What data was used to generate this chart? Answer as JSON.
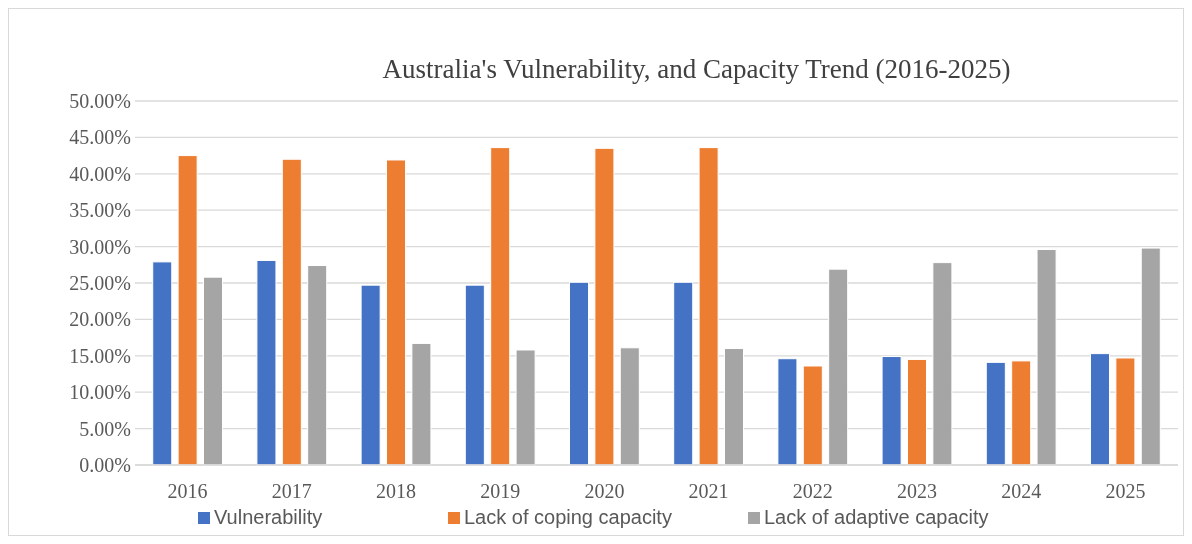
{
  "chart_data": {
    "type": "bar",
    "title": "Australia's Vulnerability, and Capacity Trend (2016-2025)",
    "categories": [
      "2016",
      "2017",
      "2018",
      "2019",
      "2020",
      "2021",
      "2022",
      "2023",
      "2024",
      "2025"
    ],
    "series": [
      {
        "name": "Vulnerability",
        "color": "#4472c4",
        "values": [
          27.9,
          28.1,
          24.7,
          24.7,
          25.1,
          25.1,
          14.6,
          14.9,
          14.1,
          15.3
        ]
      },
      {
        "name": "Lack of coping capacity",
        "color": "#ed7d31",
        "values": [
          42.5,
          42.0,
          41.9,
          43.6,
          43.5,
          43.6,
          13.6,
          14.5,
          14.3,
          14.7
        ]
      },
      {
        "name": "Lack of adaptive capacity",
        "color": "#a5a5a5",
        "values": [
          25.8,
          27.4,
          16.7,
          15.8,
          16.1,
          16.0,
          26.9,
          27.8,
          29.6,
          29.8
        ]
      }
    ],
    "ylim": [
      0,
      50
    ],
    "yticks": [
      {
        "value": 0,
        "label": "0.00%"
      },
      {
        "value": 5,
        "label": "5.00%"
      },
      {
        "value": 10,
        "label": "10.00%"
      },
      {
        "value": 15,
        "label": "15.00%"
      },
      {
        "value": 20,
        "label": "20.00%"
      },
      {
        "value": 25,
        "label": "25.00%"
      },
      {
        "value": 30,
        "label": "30.00%"
      },
      {
        "value": 35,
        "label": "35.00%"
      },
      {
        "value": 40,
        "label": "40.00%"
      },
      {
        "value": 45,
        "label": "45.00%"
      },
      {
        "value": 50,
        "label": "50.00%"
      }
    ],
    "grid": "y",
    "legend": "bottom"
  }
}
